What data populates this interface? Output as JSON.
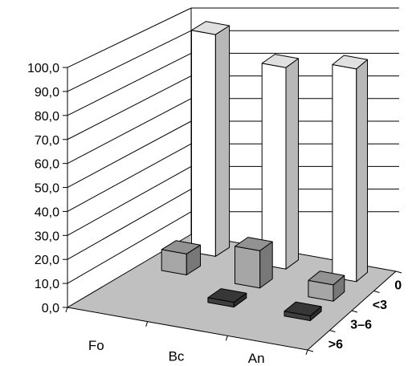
{
  "chart_data": {
    "type": "bar",
    "subtype": "3d-column",
    "categories": [
      "Fo",
      "Bc",
      "An"
    ],
    "depth_categories": [
      "0",
      "<3",
      "3–6",
      ">6"
    ],
    "series": [
      {
        "name": "0",
        "values": [
          98.0,
          89.0,
          94.0
        ],
        "color": "#ffffff"
      },
      {
        "name": "<3",
        "values": [
          9.0,
          16.0,
          7.0
        ],
        "color": "#a6a6a6"
      },
      {
        "name": "3–6",
        "values": [
          0.0,
          2.0,
          2.0
        ],
        "color": "#3f3f3f"
      },
      {
        "name": ">6",
        "values": [
          0.0,
          0.0,
          0.0
        ],
        "color": "#1f1f1f"
      }
    ],
    "y_ticks": [
      "0,0",
      "10,0",
      "20,0",
      "30,0",
      "40,0",
      "50,0",
      "60,0",
      "70,0",
      "80,0",
      "90,0",
      "100,0"
    ],
    "ylim": [
      0,
      100
    ],
    "grid": true,
    "legend": "none",
    "title": "",
    "xlabel": "",
    "ylabel": "",
    "floor_color": "#c0c0c0",
    "wall_color": "#ffffff"
  }
}
